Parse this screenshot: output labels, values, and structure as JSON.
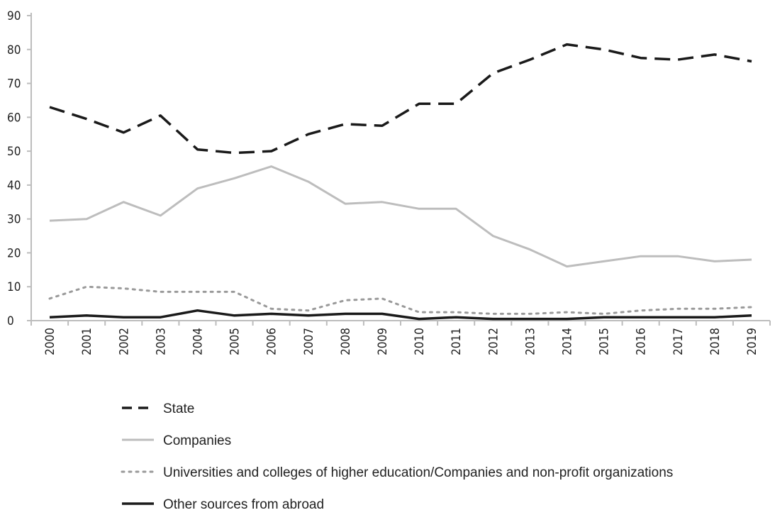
{
  "chart_data": {
    "type": "line",
    "title": "",
    "xlabel": "",
    "ylabel": "",
    "ylim": [
      0,
      90
    ],
    "yticks": [
      0,
      10,
      20,
      30,
      40,
      50,
      60,
      70,
      80,
      90
    ],
    "categories": [
      "2000",
      "2001",
      "2002",
      "2003",
      "2004",
      "2005",
      "2006",
      "2007",
      "2008",
      "2009",
      "2010",
      "2011",
      "2012",
      "2013",
      "2014",
      "2015",
      "2016",
      "2017",
      "2018",
      "2019"
    ],
    "grid": false,
    "legend_position": "bottom",
    "series": [
      {
        "name": "State",
        "style": "dashed",
        "color": "#1a1a1a",
        "values": [
          63,
          59.5,
          55.5,
          60.5,
          50.5,
          49.5,
          50,
          55,
          58,
          57.5,
          64,
          64,
          73,
          77,
          81.5,
          80,
          77.5,
          77,
          78.5,
          76.5
        ]
      },
      {
        "name": "Companies",
        "style": "solid",
        "color": "#bdbdbd",
        "values": [
          29.5,
          30,
          35,
          31,
          39,
          42,
          45.5,
          41,
          34.5,
          35,
          33,
          33,
          25,
          21,
          16,
          17.5,
          19,
          19,
          17.5,
          18
        ]
      },
      {
        "name": "Universities and colleges of higher education/Companies and non-profit organizations",
        "style": "dotted",
        "color": "#9a9a9a",
        "values": [
          6.5,
          10,
          9.5,
          8.5,
          8.5,
          8.5,
          3.5,
          3,
          6,
          6.5,
          2.5,
          2.5,
          2,
          2,
          2.5,
          2,
          3,
          3.5,
          3.5,
          4
        ]
      },
      {
        "name": "Other sources from abroad",
        "style": "solid",
        "color": "#1a1a1a",
        "values": [
          1,
          1.5,
          1,
          1,
          3,
          1.5,
          2,
          1.5,
          2,
          2,
          0.5,
          1,
          0.5,
          0.5,
          0.5,
          1,
          1,
          1,
          1,
          1.5
        ]
      }
    ]
  }
}
